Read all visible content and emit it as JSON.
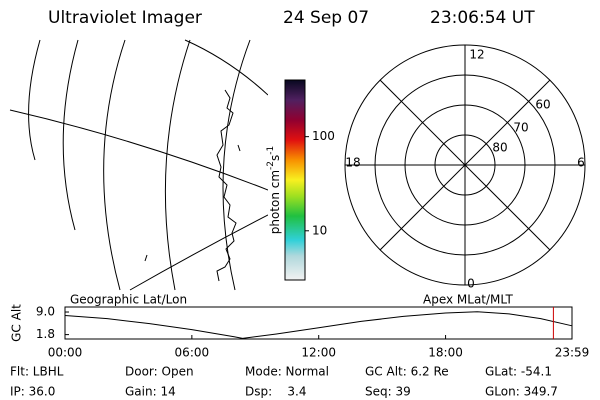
{
  "header": {
    "instrument": "Ultraviolet Imager",
    "date": "24 Sep 07",
    "time": "23:06:54 UT"
  },
  "colorbar": {
    "label": "photon cm",
    "label_sup1": "-2",
    "label_mid": "s",
    "label_sup2": "-1",
    "scale": "log",
    "lim": [
      3,
      400
    ],
    "ticks": [
      10,
      100
    ]
  },
  "polar_plot": {
    "mlt_labels": {
      "top": "12",
      "bottom": "0",
      "left": "18",
      "right": "6"
    },
    "lat_labels": [
      "60",
      "70",
      "80"
    ]
  },
  "altitude_plot": {
    "y_label": "GC Alt",
    "left_title": "Geographic Lat/Lon",
    "right_title": "Apex MLat/MLT",
    "x": [
      0,
      2,
      4,
      6,
      8,
      8.4,
      10,
      12,
      14,
      16,
      18,
      19.5,
      21,
      22.5,
      23.98
    ],
    "values": [
      7.9,
      6.9,
      5.3,
      3.4,
      1.1,
      0.6,
      2.0,
      4.0,
      6.0,
      7.6,
      8.7,
      9.1,
      8.4,
      6.9,
      4.6
    ],
    "xlim": [
      0,
      23.98
    ],
    "ylim": [
      0.4,
      10.6
    ],
    "xticks": [
      {
        "value": 0,
        "label": "00:00"
      },
      {
        "value": 6,
        "label": "06:00"
      },
      {
        "value": 12,
        "label": "12:00"
      },
      {
        "value": 18,
        "label": "18:00"
      },
      {
        "value": 23.98,
        "label": "23:59"
      }
    ],
    "yticks": [
      {
        "value": 9,
        "label": "9.0"
      },
      {
        "value": 1.8,
        "label": "1.8"
      }
    ],
    "current_time": 23.1,
    "line_color": "#000000",
    "marker_color": "#cc0000"
  },
  "footer": {
    "rows": [
      [
        "Flt: LBHL",
        "Door: Open",
        "Mode: Normal",
        "GC Alt: 6.2 Re",
        "GLat: -54.1"
      ],
      [
        "IP: 36.0",
        "Gain: 14",
        "Dsp:    3.4",
        "Seq: 39",
        "GLon: 349.7"
      ]
    ]
  }
}
